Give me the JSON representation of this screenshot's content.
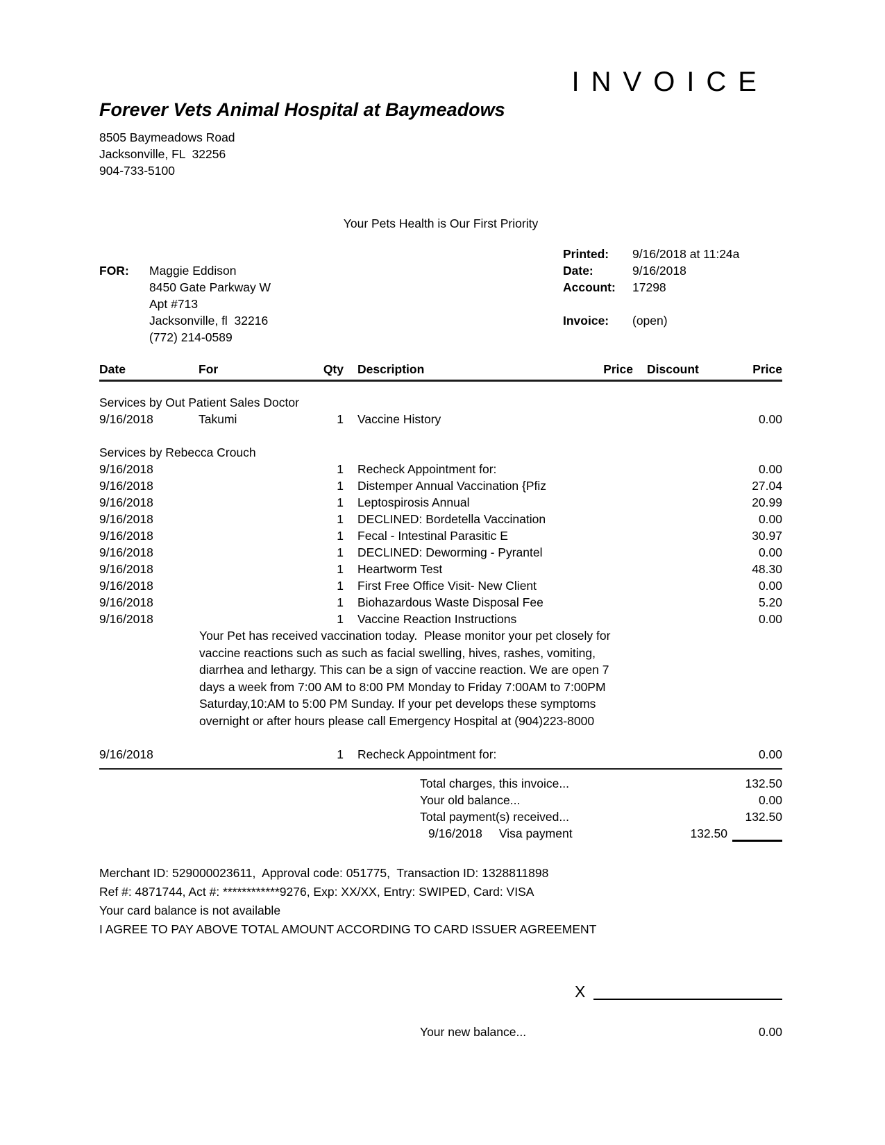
{
  "colors": {
    "text": "#000000",
    "background": "#ffffff"
  },
  "invoice_title": "INVOICE",
  "clinic": {
    "name": "Forever Vets Animal Hospital at Baymeadows",
    "address_line1": "8505 Baymeadows Road",
    "address_line2": "Jacksonville, FL  32256",
    "phone": "904-733-5100",
    "tagline": "Your Pets Health is Our First Priority"
  },
  "bill_to": {
    "label": "FOR:",
    "name": "Maggie Eddison",
    "address_line1": "8450 Gate Parkway W",
    "address_line2": "Apt #713",
    "address_line3": "Jacksonville, fl  32216",
    "phone": "(772) 214-0589"
  },
  "meta": {
    "printed_label": "Printed:",
    "printed_value": "9/16/2018 at 11:24a",
    "date_label": "Date:",
    "date_value": "9/16/2018",
    "account_label": "Account:",
    "account_value": "17298",
    "invoice_label": "Invoice:",
    "invoice_value": "(open)"
  },
  "table": {
    "headers": [
      "Date",
      "For",
      "Qty",
      "Description",
      "Price",
      "Discount",
      "Price"
    ],
    "sections": [
      {
        "title": "Services by Out Patient Sales Doctor",
        "rows": [
          {
            "date": "9/16/2018",
            "for": "Takumi",
            "qty": "1",
            "description": "Vaccine History",
            "price": "",
            "discount": "",
            "amount": "0.00"
          }
        ]
      },
      {
        "title": "Services by Rebecca Crouch",
        "rows": [
          {
            "date": "9/16/2018",
            "for": "",
            "qty": "1",
            "description": "Recheck Appointment for:",
            "price": "",
            "discount": "",
            "amount": "0.00"
          },
          {
            "date": "9/16/2018",
            "for": "",
            "qty": "1",
            "description": "Distemper Annual Vaccination {Pfiz",
            "price": "",
            "discount": "",
            "amount": "27.04"
          },
          {
            "date": "9/16/2018",
            "for": "",
            "qty": "1",
            "description": "Leptospirosis Annual",
            "price": "",
            "discount": "",
            "amount": "20.99"
          },
          {
            "date": "9/16/2018",
            "for": "",
            "qty": "1",
            "description": "DECLINED: Bordetella Vaccination",
            "price": "",
            "discount": "",
            "amount": "0.00"
          },
          {
            "date": "9/16/2018",
            "for": "",
            "qty": "1",
            "description": "Fecal - Intestinal Parasitic E",
            "price": "",
            "discount": "",
            "amount": "30.97"
          },
          {
            "date": "9/16/2018",
            "for": "",
            "qty": "1",
            "description": "DECLINED: Deworming - Pyrantel",
            "price": "",
            "discount": "",
            "amount": "0.00"
          },
          {
            "date": "9/16/2018",
            "for": "",
            "qty": "1",
            "description": "Heartworm Test",
            "price": "",
            "discount": "",
            "amount": "48.30"
          },
          {
            "date": "9/16/2018",
            "for": "",
            "qty": "1",
            "description": "First Free Office Visit- New Client",
            "price": "",
            "discount": "",
            "amount": "0.00"
          },
          {
            "date": "9/16/2018",
            "for": "",
            "qty": "1",
            "description": "Biohazardous Waste Disposal Fee",
            "price": "",
            "discount": "",
            "amount": "5.20"
          },
          {
            "date": "9/16/2018",
            "for": "",
            "qty": "1",
            "description": "Vaccine Reaction Instructions",
            "price": "",
            "discount": "",
            "amount": "0.00"
          }
        ],
        "note_lines": [
          "Your Pet has received vaccination today.  Please monitor your pet closely for",
          "vaccine reactions such as such as facial swelling, hives, rashes, vomiting,",
          "diarrhea and lethargy. This can be a sign of vaccine reaction. We are open 7",
          "days a week from 7:00 AM to 8:00 PM Monday to Friday 7:00AM to 7:00PM",
          "Saturday,10:AM to 5:00 PM Sunday. If your pet develops these symptoms",
          "overnight or after hours please call Emergency Hospital at (904)223-8000"
        ]
      },
      {
        "title": "",
        "rows": [
          {
            "date": "9/16/2018",
            "for": "",
            "qty": "1",
            "description": "Recheck Appointment for:",
            "price": "",
            "discount": "",
            "amount": "0.00"
          }
        ]
      }
    ]
  },
  "totals": {
    "rows": [
      {
        "label": "Total charges, this invoice...",
        "value": "132.50"
      },
      {
        "label": "Your old balance...",
        "value": "0.00"
      },
      {
        "label": "Total payment(s) received...",
        "value": "132.50"
      }
    ],
    "payment": {
      "date": "9/16/2018",
      "method": "Visa payment",
      "amount": "132.50"
    }
  },
  "card_info": {
    "lines": [
      "Merchant ID: 529000023611,  Approval code: 051775,  Transaction ID: 1328811898",
      "Ref #: 4871744, Act #: ************9276, Exp: XX/XX, Entry: SWIPED, Card: VISA",
      "Your card balance is not available",
      "I AGREE TO PAY ABOVE TOTAL AMOUNT ACCORDING TO CARD ISSUER AGREEMENT"
    ]
  },
  "signature": {
    "x_label": "X"
  },
  "new_balance": {
    "label": "Your new balance...",
    "value": "0.00"
  }
}
